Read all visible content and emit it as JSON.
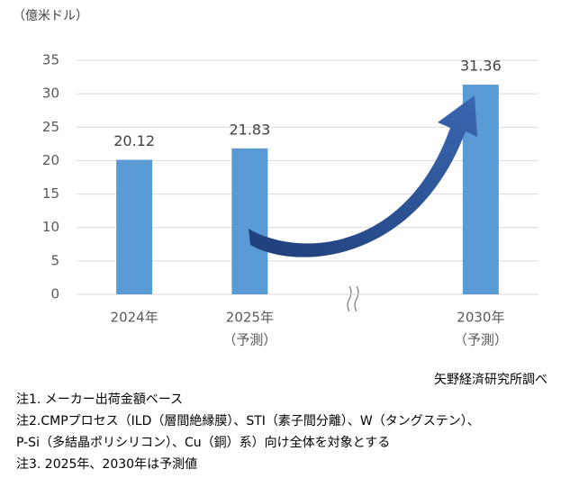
{
  "chart_data": {
    "type": "bar",
    "unit_label": "（億米ドル）",
    "categories": [
      "2024年",
      "2025年",
      null,
      "2030年"
    ],
    "category_notes": [
      null,
      "（予測）",
      null,
      "（予測）"
    ],
    "values": [
      20.12,
      21.83,
      null,
      31.36
    ],
    "color": "#5b9bd5",
    "ylim": [
      0,
      35
    ],
    "yticks": [
      0,
      5,
      10,
      15,
      20,
      25,
      30,
      35
    ],
    "grid": true,
    "source": "矢野経済研究所調べ",
    "notes": [
      "注1. メーカー出荷金額ベース",
      "注2.CMPプロセス（ILD（層間絶縁膜）、STI（素子間分離）、W（タングステン）、",
      "P-Si（多結晶ポリシリコン）、Cu（銅）系）向け全体を対象とする",
      "注3. 2025年、2030年は予測値"
    ]
  }
}
